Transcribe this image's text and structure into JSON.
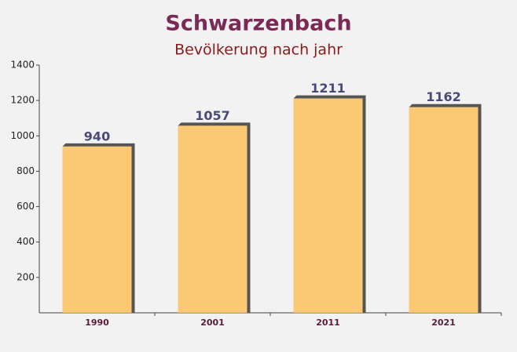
{
  "chart_data": {
    "type": "bar",
    "title": "Schwarzenbach",
    "subtitle": "Bevölkerung nach jahr",
    "categories": [
      "1990",
      "2001",
      "2011",
      "2021"
    ],
    "values": [
      940,
      1057,
      1211,
      1162
    ],
    "color": "#fcc468",
    "ylim": [
      0,
      1400
    ],
    "yticks": [
      200,
      400,
      600,
      800,
      1000,
      1200,
      1400
    ]
  }
}
